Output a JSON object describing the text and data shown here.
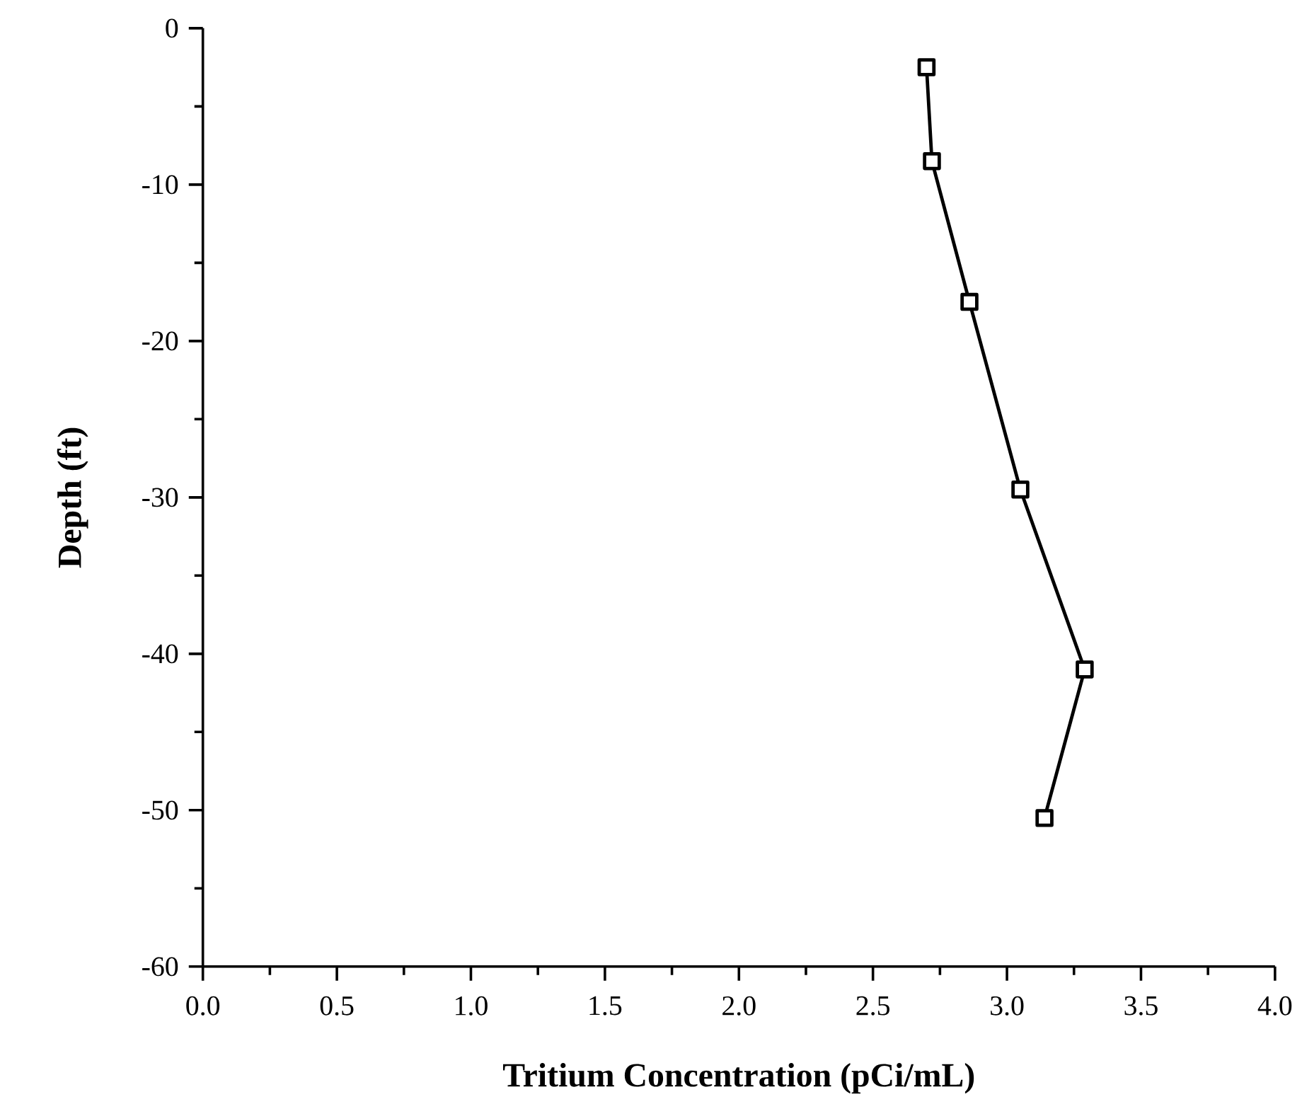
{
  "chart_data": {
    "type": "line",
    "xlabel": "Tritium Concentration (pCi/mL)",
    "ylabel": "Depth (ft)",
    "series": [
      {
        "color": "#000000",
        "x": [
          2.7,
          2.72,
          2.86,
          3.05,
          3.29,
          3.14
        ],
        "values": [
          -2.5,
          -8.5,
          -17.5,
          -29.5,
          -41,
          -50.5
        ]
      }
    ],
    "xlim": [
      0,
      4
    ],
    "ylim": [
      -60,
      0
    ],
    "xticks": [
      {
        "value": 0,
        "label": "0.0"
      },
      {
        "value": 0.5,
        "label": "0.5"
      },
      {
        "value": 1,
        "label": "1.0"
      },
      {
        "value": 1.5,
        "label": "1.5"
      },
      {
        "value": 2,
        "label": "2.0"
      },
      {
        "value": 2.5,
        "label": "2.5"
      },
      {
        "value": 3,
        "label": "3.0"
      },
      {
        "value": 3.5,
        "label": "3.5"
      },
      {
        "value": 4,
        "label": "4.0"
      }
    ],
    "yticks": [
      -60,
      -50,
      -40,
      -30,
      -20,
      -10,
      0
    ],
    "marker": "square",
    "line_style": "solid",
    "grid": false
  }
}
